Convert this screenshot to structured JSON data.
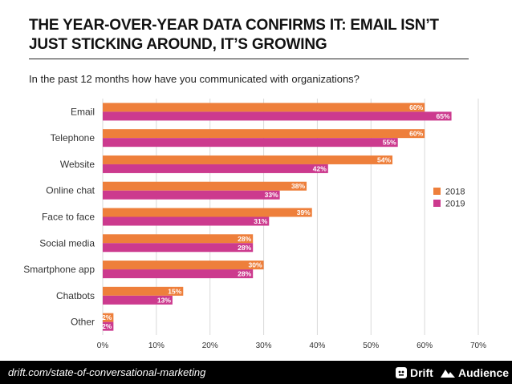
{
  "header": {
    "title": "THE YEAR-OVER-YEAR DATA CONFIRMS IT: EMAIL ISN’T JUST STICKING AROUND, IT’S GROWING",
    "subtitle": "In the past 12 months how have you communicated with organizations?"
  },
  "footer": {
    "url": "drift.com/state-of-conversational-marketing",
    "brand_drift": "Drift",
    "brand_audience": "Audience"
  },
  "colors": {
    "series_2018": "#ee7f3b",
    "series_2019": "#cc3a8e",
    "gridline": "#d9d9d9",
    "footer_bg": "#000000"
  },
  "chart_data": {
    "type": "bar",
    "orientation": "horizontal",
    "categories": [
      "Email",
      "Telephone",
      "Website",
      "Online chat",
      "Face to face",
      "Social media",
      "Smartphone app",
      "Chatbots",
      "Other"
    ],
    "series": [
      {
        "name": "2018",
        "values": [
          60,
          60,
          54,
          38,
          39,
          28,
          30,
          15,
          2
        ]
      },
      {
        "name": "2019",
        "values": [
          65,
          55,
          42,
          33,
          31,
          28,
          28,
          13,
          2
        ]
      }
    ],
    "value_suffix": "%",
    "xlim": [
      0,
      70
    ],
    "xticks": [
      0,
      10,
      20,
      30,
      40,
      50,
      60,
      70
    ],
    "xtick_labels": [
      "0%",
      "10%",
      "20%",
      "30%",
      "40%",
      "50%",
      "60%",
      "70%"
    ],
    "grid": true,
    "legend_position": "right"
  }
}
